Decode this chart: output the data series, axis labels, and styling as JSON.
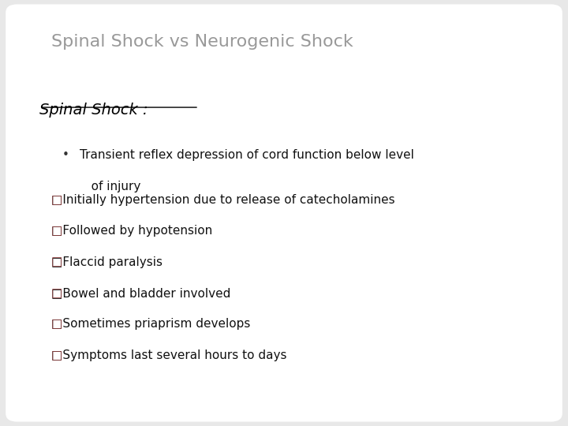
{
  "title": "Spinal Shock vs Neurogenic Shock",
  "title_color": "#999999",
  "title_fontsize": 16,
  "subtitle": "Spinal Shock :",
  "subtitle_color": "#000000",
  "subtitle_fontsize": 14,
  "background_color": "#e8e8e8",
  "slide_bg": "#ffffff",
  "bullet_line1": "Transient reflex depression of cord function below level",
  "bullet_line2": "   of injury",
  "bullet_color": "#333333",
  "bullet_fontsize": 11,
  "checkbox_items": [
    "Initially hypertension due to release of catecholamines",
    "Followed by hypotension",
    "Flaccid paralysis",
    "Bowel and bladder involved",
    "Sometimes priaprism develops",
    "Symptoms last several hours to days"
  ],
  "checkbox_color": "#8B3A3A",
  "text_color": "#111111",
  "item_fontsize": 11
}
